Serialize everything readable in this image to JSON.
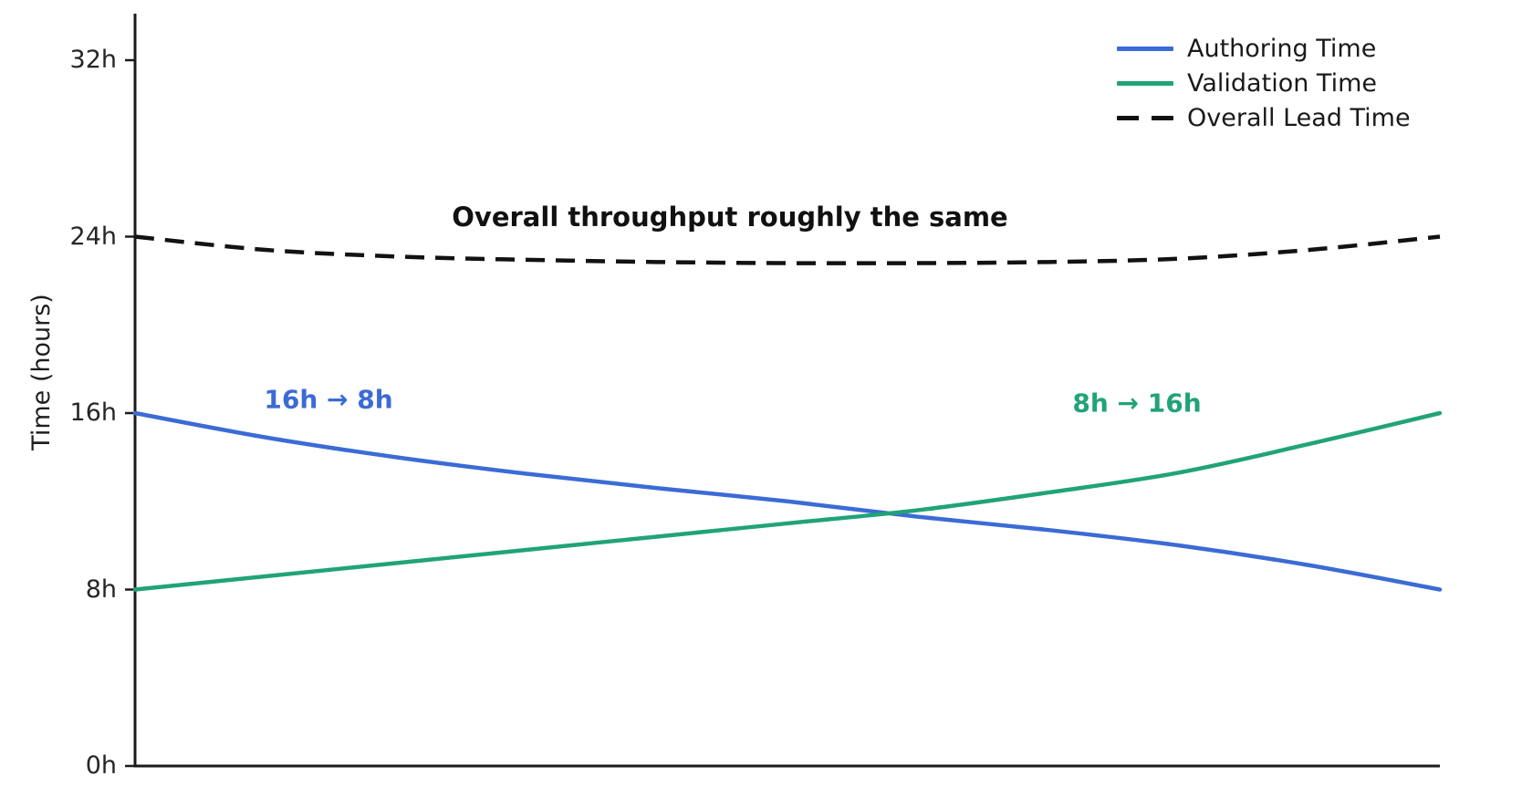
{
  "chart_data": {
    "type": "line",
    "title": "",
    "xlabel": "",
    "ylabel": "Time (hours)",
    "ylim": [
      0,
      34
    ],
    "grid": false,
    "legend_position": "top-right",
    "x_axis": {
      "unit": "progress (unlabeled)",
      "range": [
        0,
        100
      ],
      "ticks": []
    },
    "yticks": [
      {
        "value": 0,
        "label": "0h"
      },
      {
        "value": 8,
        "label": "8h"
      },
      {
        "value": 16,
        "label": "16h"
      },
      {
        "value": 24,
        "label": "24h"
      },
      {
        "value": 32,
        "label": "32h"
      }
    ],
    "x": [
      0,
      10,
      20,
      30,
      40,
      50,
      60,
      70,
      80,
      90,
      100
    ],
    "series": [
      {
        "name": "Authoring Time",
        "color": "#3B6BD5",
        "style": "solid",
        "values": [
          16.0,
          14.9,
          14.0,
          13.25,
          12.6,
          12.0,
          11.3,
          10.7,
          10.0,
          9.1,
          8.0
        ]
      },
      {
        "name": "Validation Time",
        "color": "#21A378",
        "style": "solid",
        "values": [
          8.0,
          8.6,
          9.2,
          9.8,
          10.4,
          11.0,
          11.6,
          12.4,
          13.3,
          14.6,
          16.0
        ]
      },
      {
        "name": "Overall Lead Time",
        "color": "#121212",
        "style": "dashed",
        "values": [
          24.0,
          23.4,
          23.1,
          22.95,
          22.85,
          22.8,
          22.8,
          22.85,
          23.0,
          23.4,
          24.0
        ]
      }
    ]
  },
  "axis": {
    "y_label": "Time (hours)"
  },
  "annotations": {
    "throughput": {
      "text": "Overall throughput roughly the same",
      "color": "#111111"
    },
    "authoring_change": {
      "text": "16h → 8h",
      "color": "#3B6BD5"
    },
    "validation_change": {
      "text": "8h → 16h",
      "color": "#21A378"
    }
  },
  "colors": {
    "authoring": "#3B6BD5",
    "validation": "#21A378",
    "lead": "#121212",
    "axis": "#1a1a1a",
    "background": "#ffffff"
  }
}
